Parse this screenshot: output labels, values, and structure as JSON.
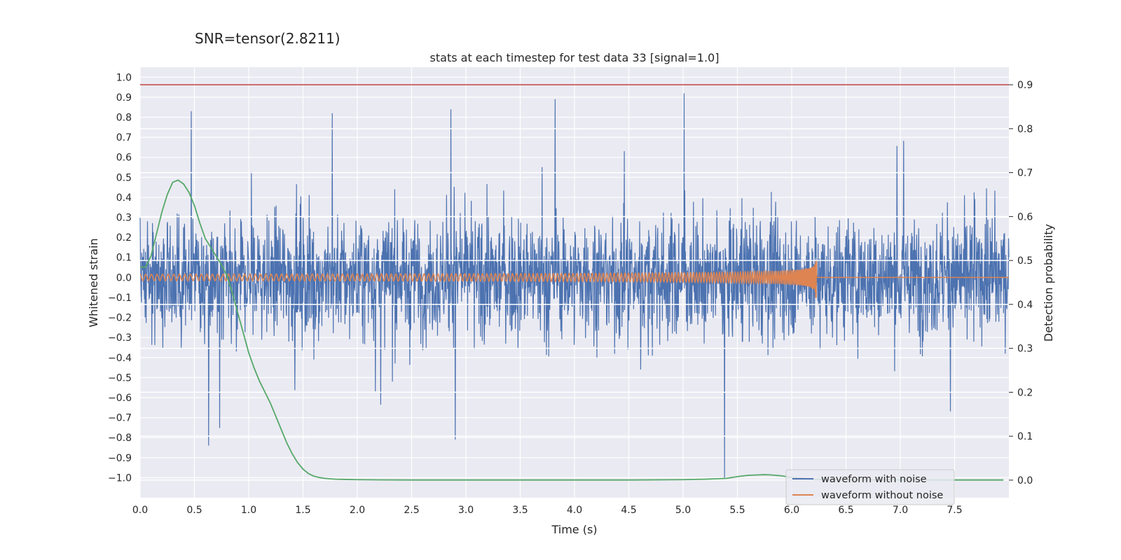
{
  "chart_data": {
    "type": "line",
    "suptitle": "SNR=tensor(2.8211)",
    "title": "stats at each timestep for test data 33 [signal=1.0]",
    "xlabel": "Time (s)",
    "ylabel_left": "Whitened strain",
    "ylabel_right": "Detection probability",
    "xlim": [
      0.0,
      8.0
    ],
    "ylim_left": [
      -1.1,
      1.05
    ],
    "ylim_right": [
      -0.04,
      0.94
    ],
    "x_ticks": [
      "0.0",
      "0.5",
      "1.0",
      "1.5",
      "2.0",
      "2.5",
      "3.0",
      "3.5",
      "4.0",
      "4.5",
      "5.0",
      "5.5",
      "6.0",
      "6.5",
      "7.0",
      "7.5"
    ],
    "y_ticks_left": [
      "1.0",
      "0.9",
      "0.8",
      "0.7",
      "0.6",
      "0.5",
      "0.4",
      "0.3",
      "0.2",
      "0.1",
      "0.0",
      "-0.1",
      "-0.2",
      "-0.3",
      "-0.4",
      "-0.5",
      "-0.6",
      "-0.7",
      "-0.8",
      "-0.9",
      "-1.0"
    ],
    "y_ticks_right": [
      "0.9",
      "0.8",
      "0.7",
      "0.6",
      "0.5",
      "0.4",
      "0.3",
      "0.2",
      "0.1",
      "0.0"
    ],
    "grid": true,
    "legend_position": "bottom-right",
    "threshold": {
      "axis": "right",
      "value": 0.9,
      "color": "#c44e52"
    },
    "colors": {
      "noise": "#4c72b0",
      "clean": "#dd8452",
      "probability": "#55a868",
      "background": "#eaeaf2"
    },
    "series": [
      {
        "name": "waveform with noise",
        "axis": "left",
        "kind": "noisy-signal",
        "amplitude_range": [
          -1.0,
          0.92
        ],
        "notable_peaks": [
          {
            "x": 0.47,
            "y": 0.83
          },
          {
            "x": 1.77,
            "y": 0.82
          },
          {
            "x": 2.86,
            "y": 0.84
          },
          {
            "x": 3.82,
            "y": 0.89
          },
          {
            "x": 5.01,
            "y": 0.92
          },
          {
            "x": 5.38,
            "y": -1.0
          },
          {
            "x": 0.63,
            "y": -0.84
          },
          {
            "x": 2.9,
            "y": -0.81
          }
        ]
      },
      {
        "name": "waveform without noise",
        "axis": "left",
        "kind": "chirp",
        "merger_time": 6.23,
        "peak_amplitude": 0.08,
        "trough_amplitude": -0.1
      },
      {
        "axis": "right",
        "kind": "probability",
        "x": [
          0.0,
          0.05,
          0.1,
          0.15,
          0.2,
          0.25,
          0.3,
          0.35,
          0.4,
          0.45,
          0.5,
          0.55,
          0.6,
          0.65,
          0.7,
          0.75,
          0.8,
          0.85,
          0.9,
          0.95,
          1.0,
          1.05,
          1.1,
          1.15,
          1.2,
          1.25,
          1.3,
          1.35,
          1.4,
          1.45,
          1.5,
          1.55,
          1.6,
          1.65,
          1.7,
          1.8,
          1.9,
          2.0,
          2.2,
          2.5,
          3.0,
          3.5,
          4.0,
          4.5,
          5.0,
          5.2,
          5.4,
          5.5,
          5.6,
          5.7,
          5.75,
          5.8,
          5.9,
          6.0,
          6.2,
          6.4,
          6.6,
          7.0,
          7.5,
          7.95
        ],
        "y": [
          0.485,
          0.485,
          0.51,
          0.56,
          0.61,
          0.65,
          0.678,
          0.683,
          0.674,
          0.655,
          0.625,
          0.585,
          0.55,
          0.53,
          0.51,
          0.49,
          0.465,
          0.425,
          0.38,
          0.335,
          0.29,
          0.255,
          0.225,
          0.2,
          0.175,
          0.145,
          0.115,
          0.085,
          0.06,
          0.04,
          0.025,
          0.015,
          0.009,
          0.006,
          0.004,
          0.002,
          0.0015,
          0.001,
          0.0006,
          0.0003,
          0.0003,
          0.0003,
          0.0003,
          0.0003,
          0.001,
          0.002,
          0.004,
          0.008,
          0.011,
          0.012,
          0.0125,
          0.012,
          0.01,
          0.006,
          0.002,
          0.0008,
          0.0005,
          0.0004,
          0.0003,
          0.0003
        ]
      }
    ]
  }
}
